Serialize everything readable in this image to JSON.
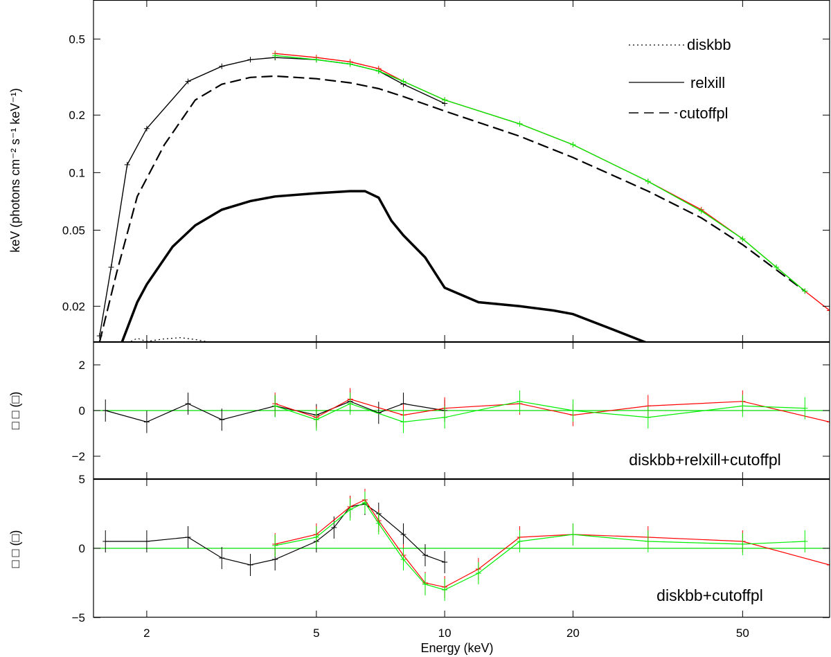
{
  "chart_data": {
    "type": "line",
    "xlabel": "Energy (keV)",
    "xscale": "log",
    "xlim": [
      1.5,
      80
    ],
    "x_ticks": [
      2,
      5,
      10,
      20,
      50
    ],
    "legend": {
      "position": "top-right",
      "entries": [
        {
          "label": "diskbb",
          "style": "dotted"
        },
        {
          "label": "relxill",
          "style": "solid"
        },
        {
          "label": "cutoffpl",
          "style": "dashed"
        }
      ]
    },
    "colors": {
      "instrument_1": "#000000",
      "instrument_2": "#ff0000",
      "instrument_3": "#00ee00",
      "zero_line": "#00dd00"
    },
    "panels": [
      {
        "id": "spectrum",
        "ylabel": "keV (photons cm⁻² s⁻¹ keV⁻¹)",
        "yscale": "log",
        "ylim": [
          0.013,
          0.8
        ],
        "y_ticks": [
          0.5,
          0.2,
          0.1,
          0.05,
          0.02
        ],
        "series": [
          {
            "color": "#000000",
            "x": [
              1.55,
              1.65,
              1.8,
              2.0,
              2.5,
              3.0,
              3.5,
              4.0,
              5.0,
              6.0,
              7.0,
              8.0,
              10.0
            ],
            "y": [
              0.014,
              0.032,
              0.11,
              0.17,
              0.3,
              0.36,
              0.39,
              0.4,
              0.39,
              0.37,
              0.34,
              0.29,
              0.23
            ]
          },
          {
            "color": "#ff0000",
            "x": [
              4.0,
              5.0,
              6.0,
              7.0,
              8.0,
              10.0,
              15.0,
              20.0,
              30.0,
              40.0,
              50.0,
              60.0,
              70.0,
              80.0
            ],
            "y": [
              0.42,
              0.4,
              0.38,
              0.35,
              0.3,
              0.24,
              0.18,
              0.14,
              0.09,
              0.064,
              0.045,
              0.032,
              0.024,
              0.019
            ]
          },
          {
            "color": "#00ee00",
            "x": [
              4.0,
              5.0,
              6.0,
              7.0,
              8.0,
              10.0,
              15.0,
              20.0,
              30.0,
              40.0,
              50.0,
              60.0,
              70.0
            ],
            "y": [
              0.41,
              0.39,
              0.37,
              0.34,
              0.3,
              0.24,
              0.18,
              0.14,
              0.09,
              0.063,
              0.045,
              0.032,
              0.024
            ]
          }
        ],
        "components": [
          {
            "name": "cutoffpl",
            "x": [
              1.55,
              1.7,
              1.9,
              2.2,
              2.6,
              3.0,
              3.5,
              4.0,
              5.0,
              6.0,
              7.0,
              8.0,
              10.0,
              15.0,
              20.0,
              30.0,
              40.0,
              50.0,
              60.0,
              70.0
            ],
            "y": [
              0.013,
              0.03,
              0.075,
              0.14,
              0.24,
              0.29,
              0.315,
              0.32,
              0.31,
              0.295,
              0.275,
              0.25,
              0.21,
              0.155,
              0.12,
              0.08,
              0.058,
              0.042,
              0.031,
              0.024
            ]
          },
          {
            "name": "relxill",
            "x": [
              1.75,
              1.9,
              2.0,
              2.3,
              2.6,
              3.0,
              3.5,
              4.0,
              5.0,
              6.0,
              6.5,
              7.0,
              7.5,
              8.0,
              9.0,
              10.0,
              12.0,
              15.0,
              18.0,
              20.0,
              25.0,
              30.0
            ],
            "y": [
              0.013,
              0.021,
              0.026,
              0.041,
              0.053,
              0.064,
              0.071,
              0.075,
              0.078,
              0.08,
              0.08,
              0.074,
              0.056,
              0.047,
              0.036,
              0.025,
              0.021,
              0.02,
              0.019,
              0.0182,
              0.015,
              0.0128
            ]
          },
          {
            "name": "diskbb",
            "x": [
              1.8,
              1.9,
              2.0,
              2.2,
              2.4,
              2.6,
              2.8
            ],
            "y": [
              0.0128,
              0.0136,
              0.0131,
              0.0135,
              0.0137,
              0.0134,
              0.013
            ]
          }
        ]
      },
      {
        "id": "residuals_1",
        "ylabel": "□ □ (□)",
        "ylim": [
          -3,
          3
        ],
        "y_ticks": [
          2,
          0,
          -2
        ],
        "annotation": "diskbb+relxill+cutoffpl",
        "series": [
          {
            "color": "#000000",
            "x": [
              1.6,
              2.0,
              2.5,
              3.0,
              4.0,
              5.0,
              6.0,
              7.0,
              8.0,
              10.0
            ],
            "y": [
              0.0,
              -0.5,
              0.3,
              -0.4,
              0.2,
              -0.2,
              0.4,
              -0.1,
              0.3,
              0.0
            ]
          },
          {
            "color": "#ff0000",
            "x": [
              4.0,
              5.0,
              6.0,
              8.0,
              10.0,
              15.0,
              20.0,
              30.0,
              50.0,
              80.0
            ],
            "y": [
              0.3,
              -0.3,
              0.5,
              -0.2,
              0.1,
              0.3,
              -0.2,
              0.2,
              0.4,
              -0.5
            ]
          },
          {
            "color": "#00ee00",
            "x": [
              4.0,
              5.0,
              6.0,
              8.0,
              10.0,
              15.0,
              20.0,
              30.0,
              50.0,
              70.0
            ],
            "y": [
              0.2,
              -0.4,
              0.3,
              -0.5,
              -0.3,
              0.4,
              0.0,
              -0.3,
              0.2,
              0.1
            ]
          }
        ]
      },
      {
        "id": "residuals_2",
        "ylabel": "□ □ (□)",
        "ylim": [
          -5,
          5
        ],
        "y_ticks": [
          5,
          0,
          -5
        ],
        "annotation": "diskbb+cutoffpl",
        "series": [
          {
            "color": "#000000",
            "x": [
              1.6,
              2.0,
              2.5,
              3.0,
              3.5,
              4.0,
              5.0,
              5.5,
              6.0,
              6.5,
              7.0,
              8.0,
              9.0,
              10.0
            ],
            "y": [
              0.5,
              0.5,
              0.8,
              -0.7,
              -1.2,
              -0.8,
              0.5,
              1.5,
              3.0,
              3.2,
              2.5,
              1.0,
              -0.5,
              -1.0
            ]
          },
          {
            "color": "#ff0000",
            "x": [
              4.0,
              5.0,
              6.0,
              6.5,
              7.0,
              8.0,
              9.0,
              10.0,
              12.0,
              15.0,
              20.0,
              30.0,
              50.0,
              80.0
            ],
            "y": [
              0.3,
              1.0,
              3.0,
              3.5,
              2.0,
              -0.5,
              -2.5,
              -2.8,
              -1.5,
              0.8,
              1.0,
              0.8,
              0.5,
              -1.2
            ]
          },
          {
            "color": "#00ee00",
            "x": [
              4.0,
              5.0,
              6.0,
              6.5,
              7.0,
              8.0,
              9.0,
              10.0,
              12.0,
              15.0,
              20.0,
              30.0,
              50.0,
              70.0
            ],
            "y": [
              0.2,
              0.8,
              2.8,
              3.3,
              1.8,
              -0.8,
              -2.6,
              -3.0,
              -1.8,
              0.5,
              1.0,
              0.5,
              0.3,
              0.5
            ]
          }
        ]
      }
    ]
  }
}
